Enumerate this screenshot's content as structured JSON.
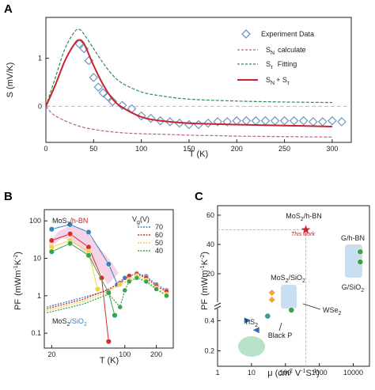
{
  "chart_data": [
    {
      "panel": "A",
      "type": "line",
      "xlabel": "T (K)",
      "ylabel": "S (mV/K)",
      "xlim": [
        0,
        320
      ],
      "ylim": [
        -0.75,
        1.85
      ],
      "xticks": [
        "0",
        "50",
        "100",
        "150",
        "200",
        "250",
        "300"
      ],
      "yticks": [
        "0",
        "1"
      ],
      "zero_line": true,
      "legend_position": "top-right",
      "legend": {
        "experiment": "Experiment Data",
        "sn": "S",
        "sn_sub": "N",
        "sn_text": "calculate",
        "stau": "S",
        "stau_sub": "τ",
        "stau_text": "Fitting",
        "sum_a": "S",
        "sum_a_sub": "N",
        "sum_plus": "+ S",
        "sum_b_sub": "τ"
      },
      "series": [
        {
          "name": "Experiment Data",
          "style": "open-diamond",
          "color": "#6f95bf",
          "x": [
            35,
            40,
            45,
            50,
            55,
            60,
            65,
            70,
            80,
            90,
            100,
            110,
            120,
            130,
            140,
            150,
            160,
            170,
            180,
            190,
            200,
            210,
            220,
            230,
            240,
            250,
            260,
            270,
            280,
            290,
            300,
            310
          ],
          "y": [
            1.3,
            1.2,
            0.95,
            0.6,
            0.4,
            0.28,
            0.2,
            0.1,
            0.02,
            -0.05,
            -0.2,
            -0.25,
            -0.3,
            -0.32,
            -0.35,
            -0.38,
            -0.38,
            -0.35,
            -0.32,
            -0.32,
            -0.3,
            -0.3,
            -0.3,
            -0.3,
            -0.3,
            -0.3,
            -0.3,
            -0.3,
            -0.32,
            -0.32,
            -0.3,
            -0.32
          ]
        },
        {
          "name": "S_N calculate",
          "style": "dashed",
          "color": "#b5638a",
          "x": [
            0,
            5,
            10,
            20,
            30,
            40,
            50,
            60,
            80,
            100,
            120,
            150,
            180,
            200,
            250,
            300
          ],
          "y": [
            0,
            -0.12,
            -0.2,
            -0.3,
            -0.38,
            -0.44,
            -0.48,
            -0.51,
            -0.55,
            -0.57,
            -0.58,
            -0.6,
            -0.61,
            -0.62,
            -0.63,
            -0.64
          ]
        },
        {
          "name": "S_τ Fitting",
          "style": "dashed",
          "color": "#2f8a55",
          "x": [
            0,
            10,
            20,
            30,
            35,
            40,
            50,
            60,
            70,
            80,
            100,
            120,
            150,
            200,
            250,
            300
          ],
          "y": [
            0,
            0.6,
            1.2,
            1.55,
            1.6,
            1.5,
            1.2,
            0.9,
            0.65,
            0.48,
            0.3,
            0.22,
            0.15,
            0.11,
            0.09,
            0.08
          ]
        },
        {
          "name": "S_N + S_τ",
          "style": "solid",
          "color": "#c8232e",
          "x": [
            0,
            10,
            20,
            30,
            35,
            40,
            50,
            60,
            70,
            80,
            100,
            120,
            150,
            200,
            250,
            300
          ],
          "y": [
            0,
            0.45,
            0.95,
            1.3,
            1.38,
            1.3,
            0.85,
            0.45,
            0.15,
            -0.02,
            -0.22,
            -0.3,
            -0.35,
            -0.38,
            -0.4,
            -0.42
          ]
        }
      ]
    },
    {
      "panel": "B",
      "type": "scatter",
      "xlabel": "T (K)",
      "ylabel_a": "PF",
      "ylabel_b": "(mWm",
      "ylabel_sup1": "-1",
      "ylabel_c": "K",
      "ylabel_sup2": "-2",
      "ylabel_d": ")",
      "xscale": "log",
      "yscale": "log",
      "xlim": [
        17,
        290
      ],
      "ylim": [
        0.04,
        200
      ],
      "xticks": [
        "20",
        "100",
        "200"
      ],
      "yticks": [
        "0.1",
        "1",
        "10",
        "100"
      ],
      "label_top_a": "MoS",
      "label_top_sub": "2",
      "label_top_b": "/h-BN",
      "label_bottom_a": "MoS",
      "label_bottom_sub": "2",
      "label_bottom_b": "/SiO",
      "label_bottom_sub2": "2",
      "legend_title_a": "V",
      "legend_title_sub": "g",
      "legend_title_b": "(V)",
      "series": [
        {
          "name": "70",
          "color": "#3b82c4",
          "hbn_x": [
            20,
            30,
            45,
            70,
            85
          ],
          "hbn_y": [
            60,
            80,
            50,
            7,
            2
          ],
          "sio2_x": [
            18,
            40,
            70,
            100,
            130,
            160,
            200,
            250
          ],
          "sio2_y": [
            0.5,
            0.9,
            1.4,
            3,
            4,
            3.3,
            2,
            1.4
          ]
        },
        {
          "name": "60",
          "color": "#d52d2d",
          "hbn_x": [
            20,
            30,
            45,
            60,
            70
          ],
          "hbn_y": [
            30,
            45,
            20,
            3,
            0.06
          ],
          "sio2_x": [
            18,
            40,
            70,
            90,
            110,
            130,
            160,
            200,
            250
          ],
          "sio2_y": [
            0.45,
            0.8,
            1.5,
            2.2,
            3.4,
            3.8,
            3,
            1.8,
            1.3
          ]
        },
        {
          "name": "50",
          "color": "#f0d43a",
          "hbn_x": [
            20,
            30,
            45,
            55
          ],
          "hbn_y": [
            20,
            30,
            15,
            1.5
          ],
          "sio2_x": [
            18,
            40,
            70,
            90,
            110,
            130,
            160,
            200,
            250
          ],
          "sio2_y": [
            0.4,
            0.7,
            1.3,
            2,
            2.7,
            3.4,
            2.6,
            1.6,
            1.1
          ]
        },
        {
          "name": "40",
          "color": "#3aa24a",
          "hbn_x": [
            20,
            30,
            45,
            70,
            80
          ],
          "hbn_y": [
            15,
            25,
            12,
            1.2,
            0.3
          ],
          "sio2_x": [
            18,
            40,
            70,
            90,
            100,
            110,
            130,
            160,
            200,
            250
          ],
          "sio2_y": [
            0.35,
            0.6,
            1.1,
            0.5,
            1.4,
            2.4,
            3,
            2.4,
            1.5,
            1
          ]
        }
      ]
    },
    {
      "panel": "C",
      "type": "scatter",
      "xlabel_a": "μ (cm",
      "xlabel_sup1": "2",
      "xlabel_b": " V",
      "xlabel_sup2": "-1",
      "xlabel_c": "S",
      "xlabel_sup3": "-1",
      "xlabel_d": ")",
      "ylabel_a": "PF",
      "ylabel_b": "(mWm",
      "ylabel_sup1": "-1",
      "ylabel_c": "K",
      "ylabel_sup2": "-2",
      "ylabel_d": ")",
      "xscale": "log",
      "xlim": [
        1,
        30000
      ],
      "xticks": [
        "1",
        "10",
        "100",
        "1000",
        "10000"
      ],
      "yticks_upper": [
        "20",
        "40",
        "60"
      ],
      "yticks_lower": [
        "0.2",
        "0.4"
      ],
      "broken_axis": true,
      "points": [
        {
          "label_a": "MoS",
          "label_sub": "2",
          "label_b": "/h-BN",
          "note": "This work",
          "mu": 400,
          "pf": 50,
          "marker": "star",
          "color": "#c8232e"
        },
        {
          "label_a": "G/h-BN",
          "mu": 16000,
          "pf": 35,
          "marker": "circle",
          "color": "#3aa24a"
        },
        {
          "label_a": "G/SiO",
          "label_sub": "2",
          "mu": 16000,
          "pf": 28,
          "marker": "circle",
          "color": "#3aa24a"
        },
        {
          "label_a": "MoS",
          "label_sub": "2",
          "label_b": "/SiO",
          "label_sub2": "2",
          "mu": 40,
          "pf": 7,
          "marker": "diamond",
          "color": "#f0a43a"
        },
        {
          "label_a": "WSe",
          "label_sub": "2",
          "mu": 150,
          "pf": 0.47,
          "marker": "circle",
          "color": "#3aa24a"
        },
        {
          "label_a": "Black P",
          "mu": 30,
          "pf": 0.43,
          "marker": "circle",
          "color": "#3a9a9a"
        },
        {
          "label_a": "TiS",
          "label_sub": "2",
          "mu": 8,
          "pf": 0.4,
          "marker": "triangle",
          "color": "#2f6fb5"
        }
      ]
    }
  ],
  "panel_letters": [
    "A",
    "B",
    "C"
  ]
}
